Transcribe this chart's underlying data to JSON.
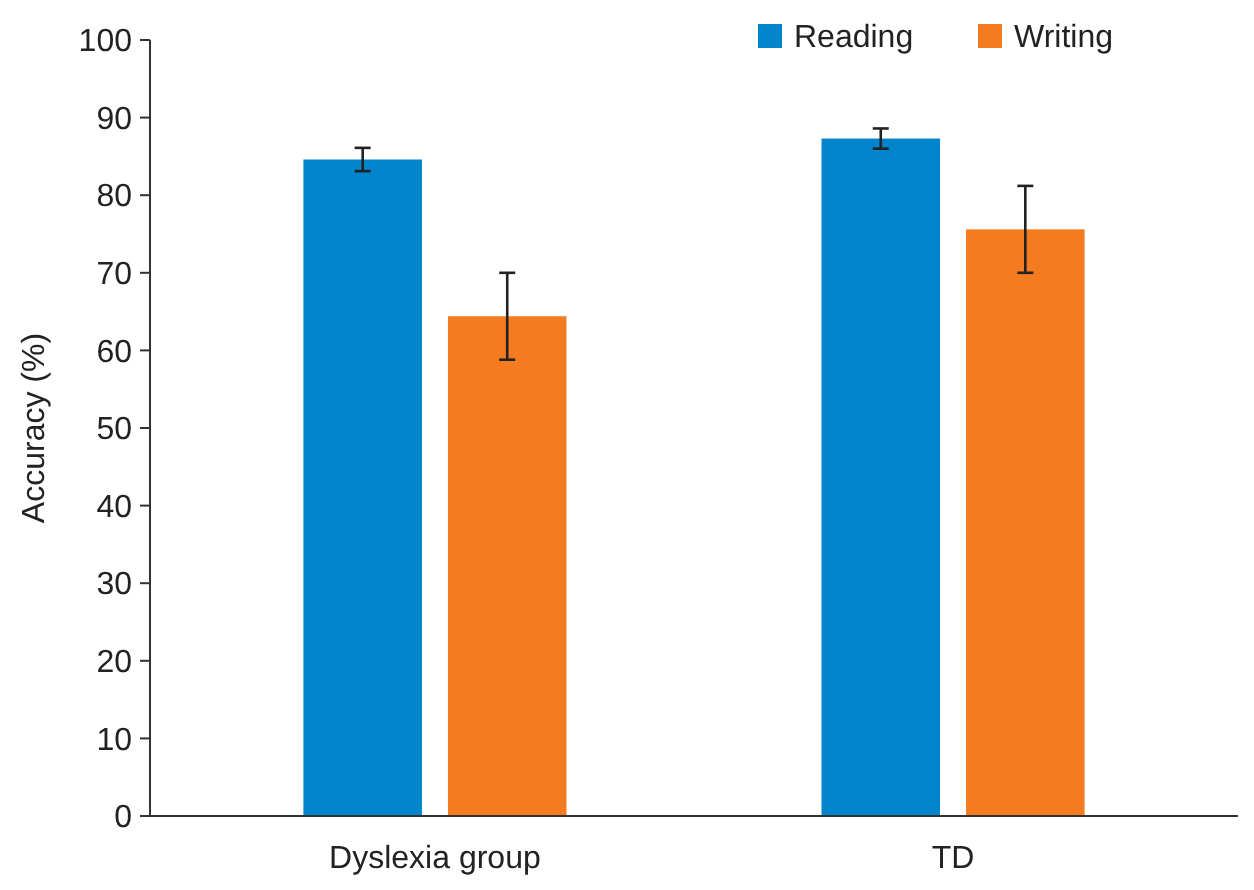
{
  "chart_data": {
    "type": "bar",
    "ylabel": "Accuracy (%)",
    "categories": [
      "Dyslexia group",
      "TD"
    ],
    "series": [
      {
        "name": "Reading",
        "color": "#0085cc",
        "values": [
          84.6,
          87.3
        ],
        "errors": [
          1.5,
          1.3
        ]
      },
      {
        "name": "Writing",
        "color": "#f47b20",
        "values": [
          64.4,
          75.6
        ],
        "errors": [
          5.6,
          5.6
        ]
      }
    ],
    "ylim": [
      0,
      100
    ],
    "yticks": [
      0,
      10,
      20,
      30,
      40,
      50,
      60,
      70,
      80,
      90,
      100
    ],
    "grid": false,
    "legend": "top right"
  }
}
